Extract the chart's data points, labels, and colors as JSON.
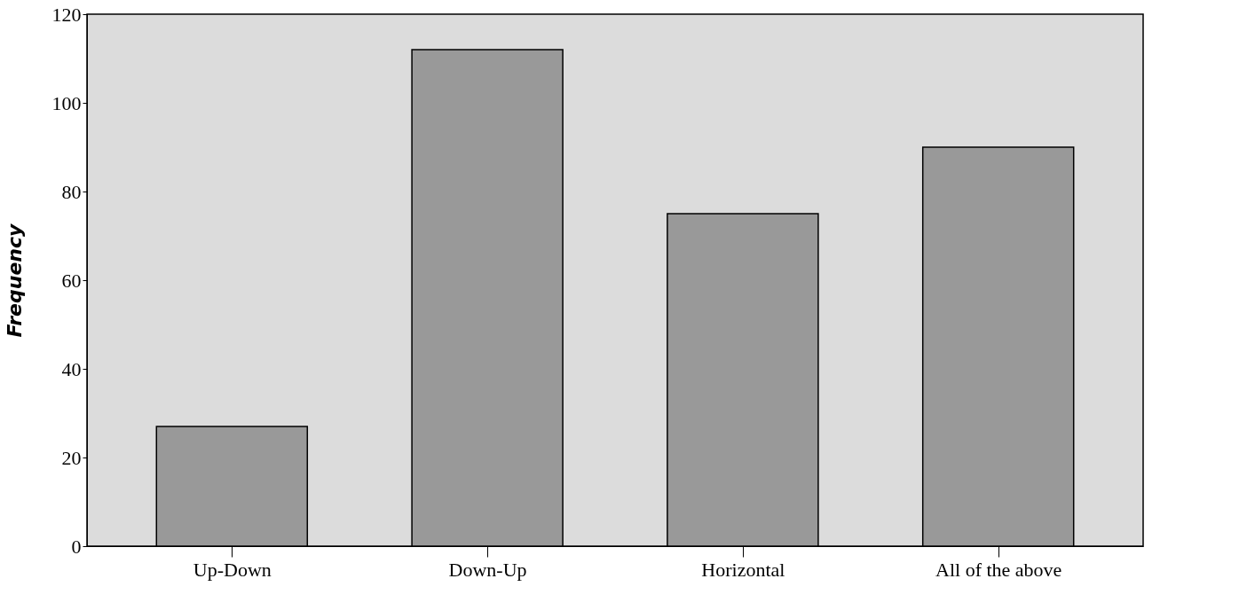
{
  "chart_data": {
    "type": "bar",
    "ylabel": "Frequency",
    "categories": [
      "Up-Down",
      "Down-Up",
      "Horizontal",
      "All of the above"
    ],
    "values": [
      27,
      112,
      75,
      90
    ],
    "color": "#999999",
    "ylim": [
      0,
      120
    ],
    "yticks": [
      0,
      20,
      40,
      60,
      80,
      100,
      120
    ],
    "grid": false
  }
}
